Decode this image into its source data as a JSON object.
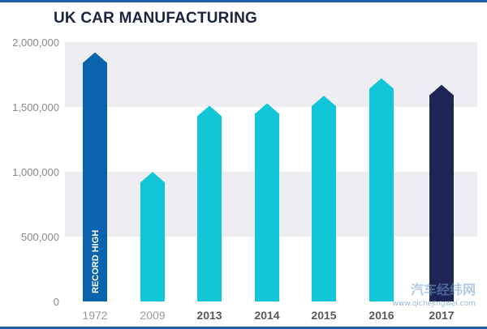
{
  "colors": {
    "frame": "#1f5ea8",
    "title": "#1c2340",
    "band": "#eeeef2",
    "record_bar": "#0a63ad",
    "normal_bar": "#12c6da",
    "latest_bar": "#1d2557",
    "tick_muted": "#9a9a9a",
    "tick_strong": "#5a5a5a"
  },
  "chart_data": {
    "type": "bar",
    "title": "UK CAR MANUFACTURING",
    "xlabel": "",
    "ylabel": "",
    "ylim": [
      0,
      2000000
    ],
    "y_ticks": [
      0,
      500000,
      1000000,
      1500000,
      2000000
    ],
    "y_tick_labels": [
      "0",
      "500,000",
      "1,000,000",
      "1,500,000",
      "2,000,000"
    ],
    "grid": "alternating bands",
    "categories": [
      "1972",
      "2009",
      "2013",
      "2014",
      "2015",
      "2016",
      "2017"
    ],
    "values": [
      1921000,
      999000,
      1510000,
      1528000,
      1587000,
      1722000,
      1671000
    ],
    "bar_styles": [
      "record",
      "normal",
      "normal",
      "normal",
      "normal",
      "normal",
      "latest"
    ],
    "bar_shape": "arrow-up",
    "annotations": [
      {
        "category": "1972",
        "text": "RECORD HIGH"
      }
    ]
  },
  "watermark": {
    "brand": "汽车经纬网",
    "url": "www.qichejingwei.com"
  }
}
